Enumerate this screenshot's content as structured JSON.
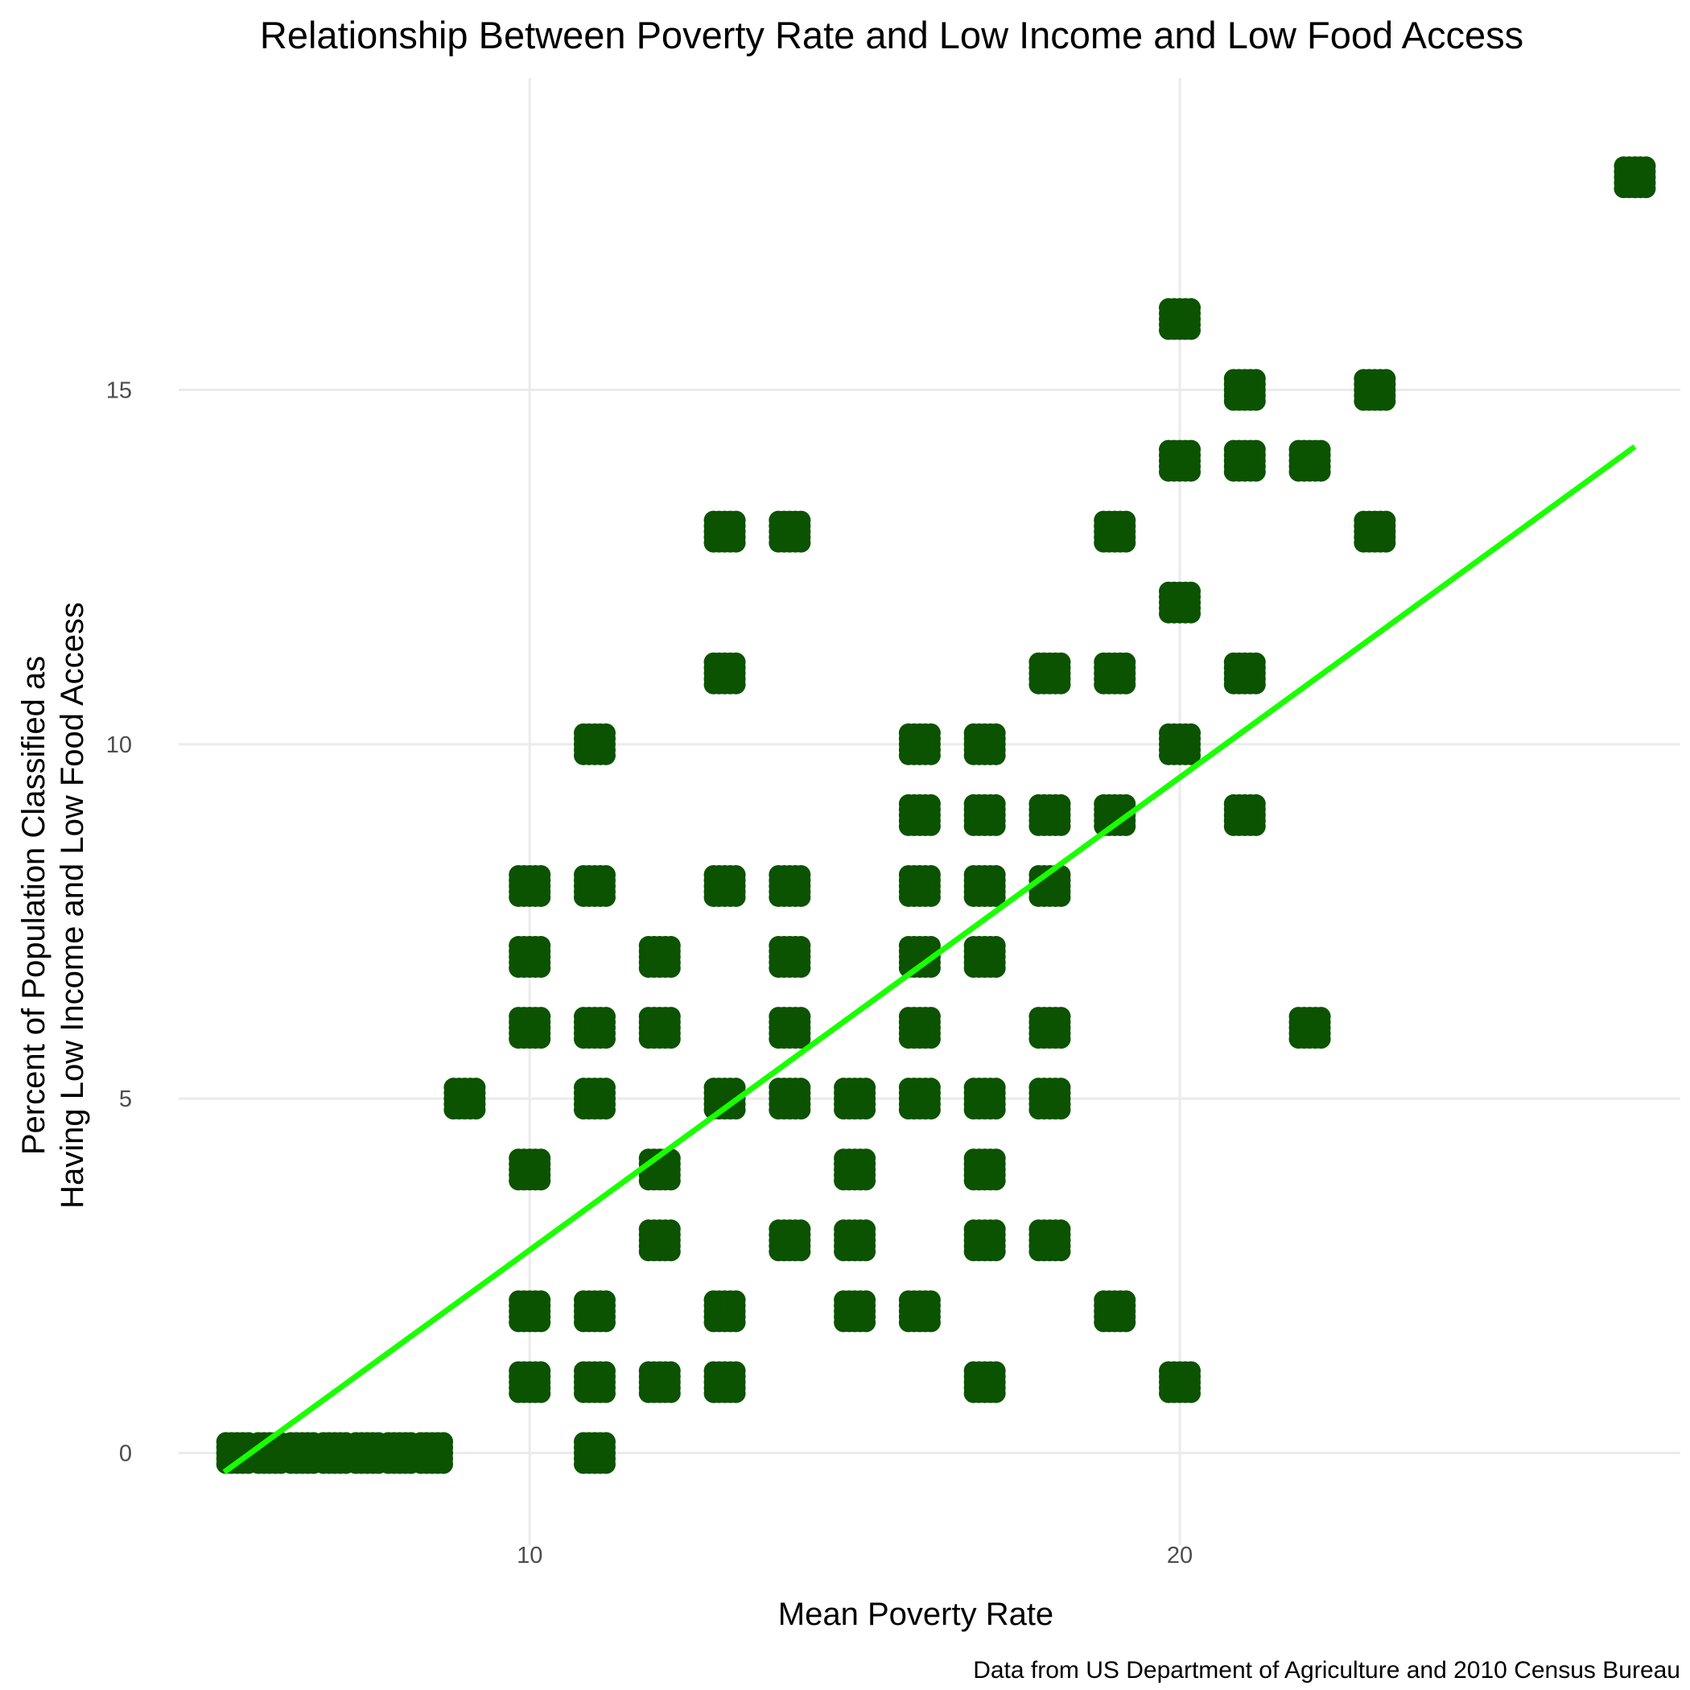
{
  "chart_data": {
    "type": "scatter",
    "title": "Relationship Between Poverty Rate and Low Income and Low Food Access",
    "xlabel": "Mean Poverty Rate",
    "ylabel_line1": "Percent of Population Classified as",
    "ylabel_line2": "Having Low Income and Low Food Access",
    "caption": "Data from US Department of Agriculture and 2010 Census Bureau",
    "xlim": [
      4.6,
      27.7
    ],
    "ylim": [
      -1.3,
      19.4
    ],
    "x_ticks": [
      10,
      20
    ],
    "y_ticks": [
      0,
      5,
      10,
      15
    ],
    "grid": true,
    "point_color": "#0b5300",
    "line_color": "#1aff00",
    "points": [
      {
        "x": 5.5,
        "y": 0
      },
      {
        "x": 6,
        "y": 0
      },
      {
        "x": 6.5,
        "y": 0
      },
      {
        "x": 7,
        "y": 0
      },
      {
        "x": 7.5,
        "y": 0
      },
      {
        "x": 8,
        "y": 0
      },
      {
        "x": 8.5,
        "y": 0
      },
      {
        "x": 9,
        "y": 5
      },
      {
        "x": 10,
        "y": 8
      },
      {
        "x": 10,
        "y": 7
      },
      {
        "x": 10,
        "y": 6
      },
      {
        "x": 10,
        "y": 4
      },
      {
        "x": 10,
        "y": 2
      },
      {
        "x": 10,
        "y": 1
      },
      {
        "x": 11,
        "y": 10
      },
      {
        "x": 11,
        "y": 8
      },
      {
        "x": 11,
        "y": 6
      },
      {
        "x": 11,
        "y": 5
      },
      {
        "x": 11,
        "y": 2
      },
      {
        "x": 11,
        "y": 1
      },
      {
        "x": 11,
        "y": 0
      },
      {
        "x": 12,
        "y": 7
      },
      {
        "x": 12,
        "y": 6
      },
      {
        "x": 12,
        "y": 4
      },
      {
        "x": 12,
        "y": 3
      },
      {
        "x": 12,
        "y": 1
      },
      {
        "x": 13,
        "y": 13
      },
      {
        "x": 13,
        "y": 11
      },
      {
        "x": 13,
        "y": 8
      },
      {
        "x": 13,
        "y": 5
      },
      {
        "x": 13,
        "y": 2
      },
      {
        "x": 13,
        "y": 1
      },
      {
        "x": 14,
        "y": 13
      },
      {
        "x": 14,
        "y": 8
      },
      {
        "x": 14,
        "y": 7
      },
      {
        "x": 14,
        "y": 6
      },
      {
        "x": 14,
        "y": 5
      },
      {
        "x": 14,
        "y": 3
      },
      {
        "x": 15,
        "y": 5
      },
      {
        "x": 15,
        "y": 4
      },
      {
        "x": 15,
        "y": 3
      },
      {
        "x": 15,
        "y": 2
      },
      {
        "x": 16,
        "y": 10
      },
      {
        "x": 16,
        "y": 9
      },
      {
        "x": 16,
        "y": 8
      },
      {
        "x": 16,
        "y": 7
      },
      {
        "x": 16,
        "y": 6
      },
      {
        "x": 16,
        "y": 5
      },
      {
        "x": 16,
        "y": 2
      },
      {
        "x": 17,
        "y": 10
      },
      {
        "x": 17,
        "y": 9
      },
      {
        "x": 17,
        "y": 8
      },
      {
        "x": 17,
        "y": 7
      },
      {
        "x": 17,
        "y": 5
      },
      {
        "x": 17,
        "y": 4
      },
      {
        "x": 17,
        "y": 3
      },
      {
        "x": 17,
        "y": 1
      },
      {
        "x": 18,
        "y": 11
      },
      {
        "x": 18,
        "y": 9
      },
      {
        "x": 18,
        "y": 8
      },
      {
        "x": 18,
        "y": 6
      },
      {
        "x": 18,
        "y": 5
      },
      {
        "x": 18,
        "y": 3
      },
      {
        "x": 19,
        "y": 13
      },
      {
        "x": 19,
        "y": 11
      },
      {
        "x": 19,
        "y": 9
      },
      {
        "x": 19,
        "y": 2
      },
      {
        "x": 20,
        "y": 16
      },
      {
        "x": 20,
        "y": 14
      },
      {
        "x": 20,
        "y": 12
      },
      {
        "x": 20,
        "y": 10
      },
      {
        "x": 20,
        "y": 1
      },
      {
        "x": 21,
        "y": 15
      },
      {
        "x": 21,
        "y": 14
      },
      {
        "x": 21,
        "y": 11
      },
      {
        "x": 21,
        "y": 9
      },
      {
        "x": 22,
        "y": 14
      },
      {
        "x": 22,
        "y": 6
      },
      {
        "x": 23,
        "y": 15
      },
      {
        "x": 23,
        "y": 13
      },
      {
        "x": 27,
        "y": 18
      }
    ],
    "trend_line": {
      "x": [
        5.3,
        27.0
      ],
      "y": [
        -0.27,
        14.2
      ]
    }
  }
}
